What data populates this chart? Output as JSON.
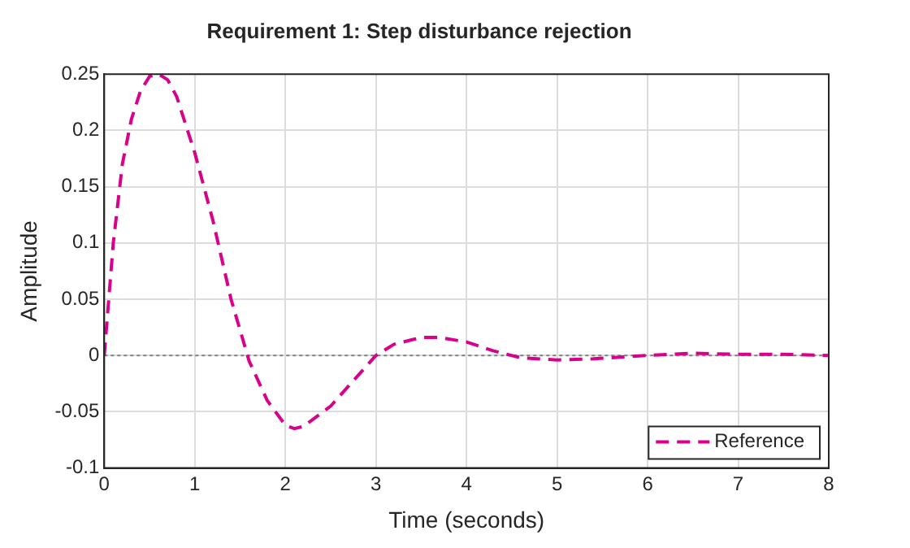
{
  "chart_data": {
    "type": "line",
    "title": "Requirement 1: Step disturbance rejection",
    "xlabel": "Time (seconds)",
    "ylabel": "Amplitude",
    "xlim": [
      0,
      8
    ],
    "xticks": [
      0,
      1,
      2,
      3,
      4,
      5,
      6,
      7,
      8
    ],
    "ylim": [
      -0.1,
      0.25
    ],
    "yticks": [
      -0.1,
      -0.05,
      0,
      0.05,
      0.1,
      0.15,
      0.2,
      0.25
    ],
    "grid": true,
    "legend": "bottom right",
    "marker": "none",
    "line_style": "dashed",
    "ref_lines": [
      {
        "axis": "y",
        "value": 0,
        "color": "#808080",
        "line_style": "dotted"
      }
    ],
    "series": [
      {
        "name": "Reference",
        "color": "#d9008b",
        "x": [
          0,
          0.05,
          0.1,
          0.2,
          0.3,
          0.4,
          0.5,
          0.6,
          0.7,
          0.8,
          1.0,
          1.2,
          1.4,
          1.6,
          1.8,
          2.0,
          2.1,
          2.2,
          2.5,
          2.8,
          3.0,
          3.2,
          3.5,
          3.7,
          4.0,
          4.3,
          4.6,
          5.0,
          5.4,
          6.0,
          6.5,
          7.0,
          7.5,
          8.0
        ],
        "values": [
          0,
          0.05,
          0.1,
          0.17,
          0.21,
          0.235,
          0.248,
          0.25,
          0.245,
          0.23,
          0.18,
          0.12,
          0.05,
          -0.005,
          -0.04,
          -0.062,
          -0.065,
          -0.063,
          -0.045,
          -0.018,
          0,
          0.01,
          0.016,
          0.016,
          0.012,
          0.004,
          -0.002,
          -0.004,
          -0.003,
          0,
          0.002,
          0.001,
          0.001,
          0
        ]
      }
    ]
  }
}
